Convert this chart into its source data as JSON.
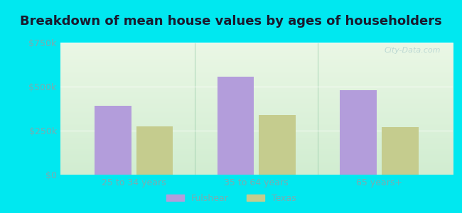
{
  "title": "Breakdown of mean house values by ages of householders",
  "categories": [
    "25 to 34 years",
    "35 to 64 years",
    "65 years+"
  ],
  "fulshear_values": [
    390000,
    555000,
    480000
  ],
  "texas_values": [
    275000,
    340000,
    270000
  ],
  "bar_color_fulshear": "#b39ddb",
  "bar_color_texas": "#c5cc8e",
  "ylim": [
    0,
    750000
  ],
  "yticks": [
    0,
    250000,
    500000,
    750000
  ],
  "ytick_labels": [
    "$0",
    "$250k",
    "$500k",
    "$750k"
  ],
  "legend_labels": [
    "Fulshear",
    "Texas"
  ],
  "bar_width": 0.3,
  "bg_outer": "#00e8f0",
  "watermark": "City-Data.com",
  "title_fontsize": 13,
  "tick_fontsize": 9,
  "legend_fontsize": 9,
  "tick_color": "#7aacb0"
}
